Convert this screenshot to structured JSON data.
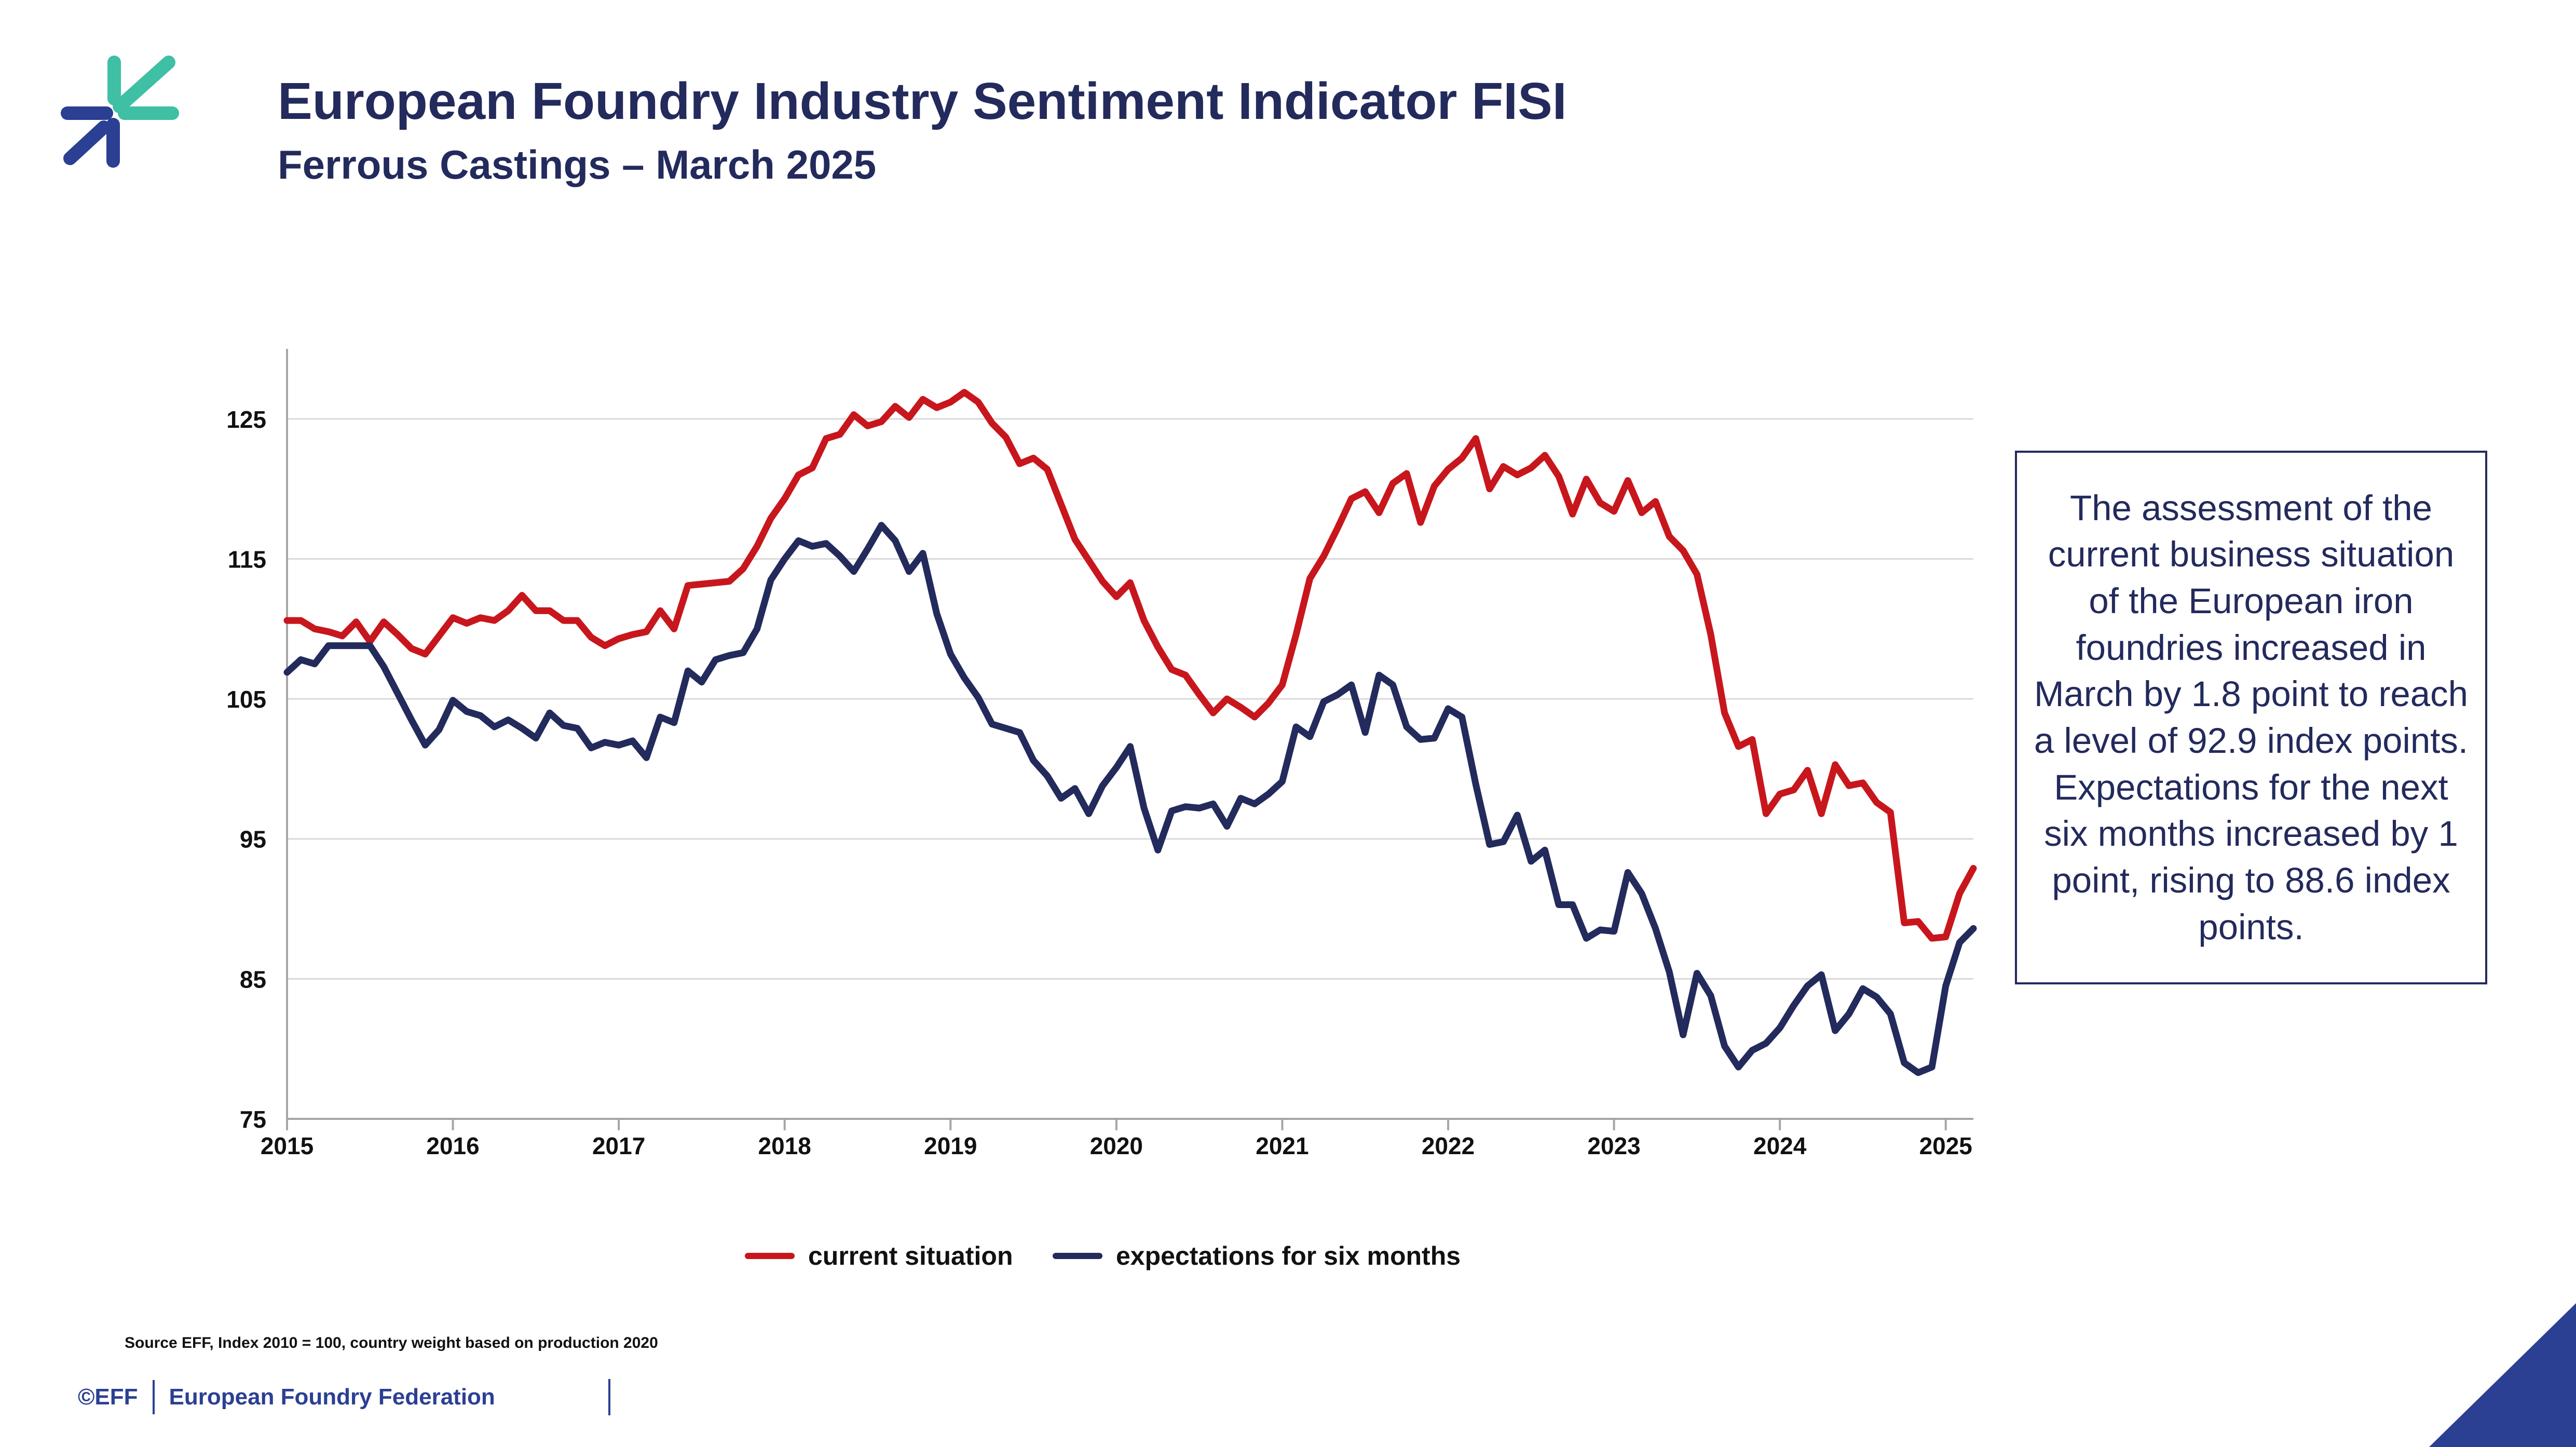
{
  "header": {
    "title": "European Foundry Industry Sentiment Indicator FISI",
    "subtitle": "Ferrous Castings – March 2025"
  },
  "colors": {
    "navy": "#232a5c",
    "red": "#c8161d",
    "blue": "#2b3f93",
    "teal": "#3fbfa4"
  },
  "infobox": {
    "text": "The assessment of the current business situation of the European iron foundries increased in March by 1.8 point to reach a level of 92.9 index points. Expectations for the next six months increased by 1 point, rising to 88.6 index points."
  },
  "source_note": "Source EFF, Index 2010 = 100, country weight based on production 2020",
  "footer": {
    "copyright": "©EFF",
    "organization": "European Foundry Federation"
  },
  "chart_data": {
    "type": "line",
    "x_start": "2015-01",
    "x_step": "month",
    "ylim": [
      75,
      130
    ],
    "y_ticks": [
      75,
      85,
      95,
      105,
      115,
      125
    ],
    "x_ticks": [
      "2015",
      "2016",
      "2017",
      "2018",
      "2019",
      "2020",
      "2021",
      "2022",
      "2023",
      "2024",
      "2025"
    ],
    "grid": true,
    "legend_position": "bottom",
    "series": [
      {
        "name": "current situation",
        "color": "#c8161d",
        "values": [
          110.6,
          110.6,
          110.0,
          109.8,
          109.5,
          110.5,
          109.1,
          110.5,
          109.6,
          108.6,
          108.2,
          109.5,
          110.8,
          110.4,
          110.8,
          110.6,
          111.3,
          112.4,
          111.3,
          111.3,
          110.6,
          110.6,
          109.4,
          108.8,
          109.3,
          109.6,
          109.8,
          111.3,
          110.0,
          113.1,
          113.2,
          113.3,
          113.4,
          114.3,
          115.9,
          117.9,
          119.3,
          121.0,
          121.5,
          123.6,
          123.9,
          125.3,
          124.5,
          124.8,
          125.9,
          125.1,
          126.4,
          125.8,
          126.2,
          126.9,
          126.2,
          124.7,
          123.7,
          121.8,
          122.2,
          121.4,
          118.9,
          116.4,
          114.9,
          113.4,
          112.3,
          113.3,
          110.6,
          108.7,
          107.1,
          106.7,
          105.3,
          104.0,
          105.0,
          104.4,
          103.7,
          104.7,
          106.0,
          109.6,
          113.6,
          115.2,
          117.2,
          119.3,
          119.8,
          118.3,
          120.4,
          121.1,
          117.6,
          120.2,
          121.4,
          122.2,
          123.6,
          120.0,
          121.6,
          121.0,
          121.5,
          122.4,
          120.9,
          118.2,
          120.7,
          119.0,
          118.4,
          120.6,
          118.3,
          119.1,
          116.6,
          115.6,
          113.9,
          109.6,
          104.0,
          101.6,
          102.1,
          96.8,
          98.2,
          98.5,
          99.9,
          96.8,
          100.3,
          98.8,
          99.0,
          97.6,
          96.9,
          89.0,
          89.1,
          87.9,
          88.0,
          91.1,
          92.9
        ]
      },
      {
        "name": "expectations for six months",
        "color": "#232a5c",
        "values": [
          106.9,
          107.8,
          107.5,
          108.8,
          108.8,
          108.8,
          108.8,
          107.3,
          105.4,
          103.5,
          101.7,
          102.8,
          104.9,
          104.1,
          103.8,
          103.0,
          103.5,
          102.9,
          102.2,
          104.0,
          103.1,
          102.9,
          101.5,
          101.9,
          101.7,
          102.0,
          100.8,
          103.7,
          103.3,
          107.0,
          106.2,
          107.8,
          108.1,
          108.3,
          110.0,
          113.5,
          115.0,
          116.3,
          115.9,
          116.1,
          115.2,
          114.1,
          115.7,
          117.4,
          116.3,
          114.1,
          115.4,
          111.1,
          108.2,
          106.5,
          105.1,
          103.2,
          102.9,
          102.6,
          100.6,
          99.5,
          97.9,
          98.6,
          96.8,
          98.8,
          100.1,
          101.6,
          97.2,
          94.2,
          97.0,
          97.3,
          97.2,
          97.5,
          95.9,
          97.9,
          97.5,
          98.2,
          99.1,
          103.0,
          102.3,
          104.8,
          105.3,
          106.0,
          102.6,
          106.7,
          106.0,
          103.0,
          102.1,
          102.2,
          104.3,
          103.7,
          98.9,
          94.6,
          94.8,
          96.7,
          93.4,
          94.2,
          90.3,
          90.3,
          87.9,
          88.5,
          88.4,
          92.6,
          91.1,
          88.6,
          85.5,
          81.0,
          85.4,
          83.8,
          80.2,
          78.7,
          79.9,
          80.4,
          81.5,
          83.1,
          84.5,
          85.3,
          81.3,
          82.5,
          84.3,
          83.7,
          82.5,
          79.0,
          78.3,
          78.7,
          84.5,
          87.6,
          88.6
        ]
      }
    ]
  }
}
